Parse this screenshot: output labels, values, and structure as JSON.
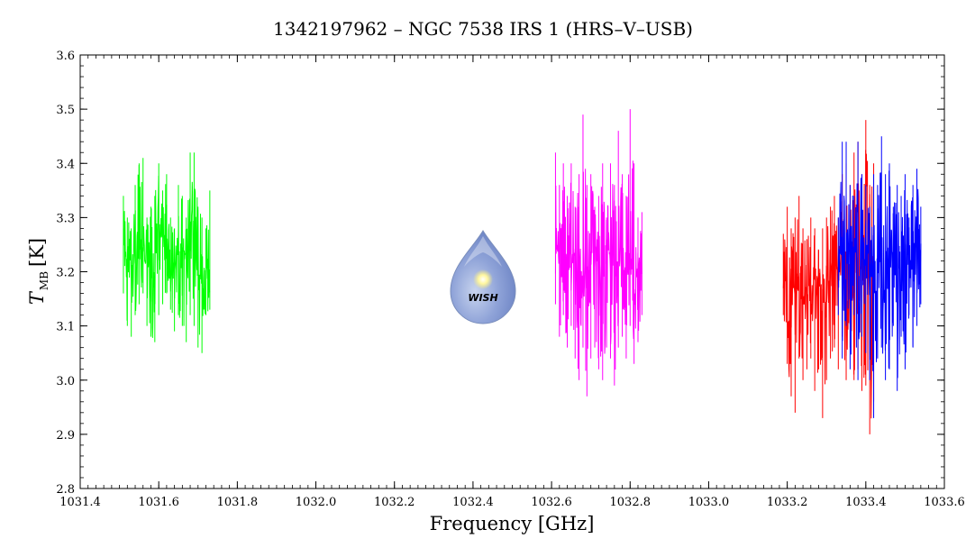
{
  "chart_data": {
    "type": "line",
    "title": "1342197962 – NGC 7538 IRS 1 (HRS–V–USB)",
    "xlabel": "Frequency [GHz]",
    "ylabel_main": "T",
    "ylabel_sub": "MB",
    "ylabel_unit": "[K]",
    "xlim": [
      1031.4,
      1033.6
    ],
    "ylim": [
      2.8,
      3.6
    ],
    "xticks": [
      1031.4,
      1031.6,
      1031.8,
      1032.0,
      1032.2,
      1032.4,
      1032.6,
      1032.8,
      1033.0,
      1033.2,
      1033.4,
      1033.6
    ],
    "xtick_labels": [
      "1031.4",
      "1031.6",
      "1031.8",
      "1032.0",
      "1032.2",
      "1032.4",
      "1032.6",
      "1032.8",
      "1033.0",
      "1033.2",
      "1033.4",
      "1033.6"
    ],
    "yticks": [
      2.8,
      2.9,
      3.0,
      3.1,
      3.2,
      3.3,
      3.4,
      3.5,
      3.6
    ],
    "ytick_labels": [
      "2.8",
      "2.9",
      "3.0",
      "3.1",
      "3.2",
      "3.3",
      "3.4",
      "3.5",
      "3.6"
    ],
    "grid": false,
    "logo_text": "WISH",
    "series": [
      {
        "color": "#00ff00",
        "x": [
          1031.51,
          1031.52,
          1031.53,
          1031.54,
          1031.55,
          1031.56,
          1031.57,
          1031.58,
          1031.59,
          1031.6,
          1031.61,
          1031.62,
          1031.63,
          1031.64,
          1031.65,
          1031.66,
          1031.67,
          1031.68,
          1031.69,
          1031.7,
          1031.71,
          1031.72,
          1031.73
        ],
        "mean": [
          3.24,
          3.22,
          3.2,
          3.22,
          3.26,
          3.24,
          3.2,
          3.22,
          3.24,
          3.25,
          3.27,
          3.24,
          3.22,
          3.2,
          3.24,
          3.23,
          3.21,
          3.24,
          3.26,
          3.2,
          3.18,
          3.2,
          3.22
        ],
        "max": [
          3.34,
          3.3,
          3.28,
          3.36,
          3.4,
          3.41,
          3.3,
          3.32,
          3.34,
          3.4,
          3.35,
          3.38,
          3.3,
          3.28,
          3.36,
          3.34,
          3.3,
          3.42,
          3.42,
          3.32,
          3.3,
          3.28,
          3.35
        ],
        "min": [
          3.16,
          3.1,
          3.08,
          3.12,
          3.14,
          3.16,
          3.1,
          3.08,
          3.07,
          3.12,
          3.14,
          3.16,
          3.13,
          3.09,
          3.12,
          3.1,
          3.07,
          3.12,
          3.1,
          3.06,
          3.05,
          3.12,
          3.13
        ]
      },
      {
        "color": "#ff00ff",
        "x": [
          1032.61,
          1032.62,
          1032.63,
          1032.64,
          1032.65,
          1032.66,
          1032.67,
          1032.68,
          1032.69,
          1032.7,
          1032.71,
          1032.72,
          1032.73,
          1032.74,
          1032.75,
          1032.76,
          1032.77,
          1032.78,
          1032.79,
          1032.8,
          1032.81,
          1032.82,
          1032.83
        ],
        "mean": [
          3.24,
          3.22,
          3.26,
          3.22,
          3.2,
          3.24,
          3.22,
          3.2,
          3.18,
          3.22,
          3.24,
          3.2,
          3.18,
          3.22,
          3.24,
          3.2,
          3.22,
          3.24,
          3.2,
          3.22,
          3.18,
          3.2,
          3.22
        ],
        "max": [
          3.42,
          3.36,
          3.4,
          3.34,
          3.4,
          3.32,
          3.38,
          3.49,
          3.36,
          3.38,
          3.32,
          3.34,
          3.4,
          3.3,
          3.4,
          3.36,
          3.46,
          3.38,
          3.34,
          3.5,
          3.4,
          3.3,
          3.31
        ],
        "min": [
          3.14,
          3.08,
          3.12,
          3.06,
          3.1,
          3.04,
          3.0,
          3.06,
          2.97,
          3.04,
          3.06,
          3.02,
          3.0,
          3.06,
          3.04,
          2.99,
          3.06,
          3.08,
          3.04,
          3.1,
          3.03,
          3.07,
          3.12
        ]
      },
      {
        "color": "#ff0000",
        "x": [
          1033.19,
          1033.2,
          1033.21,
          1033.22,
          1033.23,
          1033.24,
          1033.25,
          1033.26,
          1033.27,
          1033.28,
          1033.29,
          1033.3,
          1033.31,
          1033.32,
          1033.33,
          1033.34,
          1033.35,
          1033.36,
          1033.37,
          1033.38,
          1033.39,
          1033.4,
          1033.41,
          1033.42
        ],
        "mean": [
          3.2,
          3.18,
          3.14,
          3.16,
          3.18,
          3.14,
          3.16,
          3.14,
          3.18,
          3.16,
          3.14,
          3.18,
          3.2,
          3.22,
          3.2,
          3.24,
          3.22,
          3.2,
          3.18,
          3.22,
          3.2,
          3.22,
          3.18,
          3.2
        ],
        "max": [
          3.27,
          3.32,
          3.28,
          3.3,
          3.34,
          3.28,
          3.26,
          3.3,
          3.28,
          3.24,
          3.28,
          3.3,
          3.32,
          3.34,
          3.3,
          3.38,
          3.4,
          3.36,
          3.42,
          3.44,
          3.38,
          3.48,
          3.36,
          3.4
        ],
        "min": [
          3.12,
          3.03,
          2.97,
          2.94,
          3.04,
          3.0,
          3.02,
          3.04,
          2.98,
          3.02,
          2.93,
          3.0,
          3.04,
          3.06,
          3.02,
          3.08,
          3.0,
          3.06,
          3.0,
          3.02,
          2.98,
          2.99,
          2.9,
          2.96
        ]
      },
      {
        "color": "#0000ff",
        "x": [
          1033.33,
          1033.34,
          1033.35,
          1033.36,
          1033.37,
          1033.38,
          1033.39,
          1033.4,
          1033.41,
          1033.42,
          1033.43,
          1033.44,
          1033.45,
          1033.46,
          1033.47,
          1033.48,
          1033.49,
          1033.5,
          1033.51,
          1033.52,
          1033.53,
          1033.54
        ],
        "mean": [
          3.22,
          3.24,
          3.2,
          3.26,
          3.22,
          3.24,
          3.2,
          3.22,
          3.2,
          3.18,
          3.22,
          3.24,
          3.2,
          3.22,
          3.24,
          3.2,
          3.22,
          3.2,
          3.24,
          3.22,
          3.24,
          3.22
        ],
        "max": [
          3.3,
          3.44,
          3.44,
          3.36,
          3.34,
          3.44,
          3.38,
          3.36,
          3.32,
          3.38,
          3.36,
          3.45,
          3.38,
          3.4,
          3.32,
          3.36,
          3.34,
          3.38,
          3.3,
          3.36,
          3.39,
          3.32
        ],
        "min": [
          3.12,
          3.04,
          3.1,
          3.02,
          3.12,
          3.0,
          3.08,
          3.05,
          3.0,
          2.93,
          3.04,
          3.06,
          3.0,
          3.02,
          3.1,
          2.98,
          3.08,
          3.02,
          3.12,
          3.06,
          3.1,
          3.14
        ]
      }
    ]
  }
}
